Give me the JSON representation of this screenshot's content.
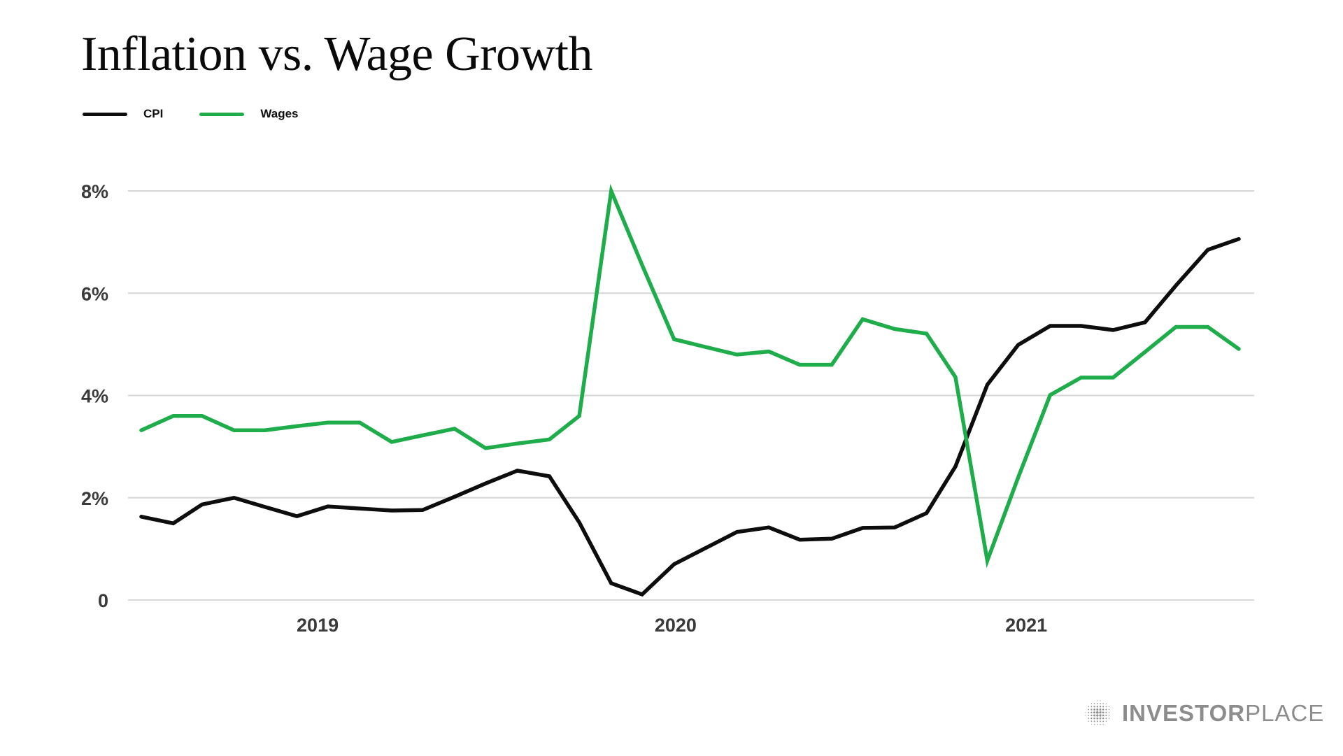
{
  "chart_data": {
    "type": "line",
    "title": "Inflation vs. Wage Growth",
    "xlabel": "",
    "ylabel": "",
    "x": [
      "2019-01",
      "2019-02",
      "2019-03",
      "2019-04",
      "2019-05",
      "2019-06",
      "2019-07",
      "2019-08",
      "2019-09",
      "2019-10",
      "2019-11",
      "2019-12",
      "2020-01",
      "2020-02",
      "2020-03",
      "2020-04",
      "2020-05",
      "2020-06",
      "2020-07",
      "2020-08",
      "2020-09",
      "2020-10",
      "2020-11",
      "2020-12",
      "2021-01",
      "2021-02",
      "2021-03",
      "2021-04",
      "2021-05",
      "2021-06",
      "2021-07",
      "2021-08",
      "2021-09",
      "2021-10",
      "2021-11",
      "2021-12"
    ],
    "series": [
      {
        "name": "CPI",
        "color": "#0d0d0d",
        "values": [
          1.63,
          1.5,
          1.87,
          2.0,
          1.82,
          1.64,
          1.83,
          1.79,
          1.75,
          1.76,
          2.02,
          2.28,
          2.53,
          2.42,
          1.52,
          0.33,
          0.11,
          0.7,
          1.01,
          1.33,
          1.42,
          1.18,
          1.2,
          1.41,
          1.42,
          1.7,
          2.61,
          4.21,
          4.99,
          5.36,
          5.36,
          5.28,
          5.43,
          6.15,
          6.85,
          7.06
        ]
      },
      {
        "name": "Wages",
        "color": "#1fad4b",
        "values": [
          3.32,
          3.6,
          3.6,
          3.32,
          3.32,
          3.4,
          3.47,
          3.47,
          3.09,
          3.22,
          3.35,
          2.97,
          3.06,
          3.14,
          3.6,
          8.0,
          6.55,
          5.1,
          4.95,
          4.8,
          4.86,
          4.6,
          4.6,
          5.49,
          5.3,
          5.21,
          4.36,
          0.77,
          2.4,
          4.01,
          4.35,
          4.35,
          4.85,
          5.34,
          5.34,
          4.91
        ]
      }
    ],
    "yticks": [
      0,
      2,
      4,
      6,
      8
    ],
    "ytick_labels": [
      "0",
      "2%",
      "4%",
      "6%",
      "8%"
    ],
    "xticks": [
      {
        "label": "2019",
        "at_index": 5.67
      },
      {
        "label": "2020",
        "at_index": 17.05
      },
      {
        "label": "2021",
        "at_index": 28.25
      }
    ],
    "ylim": [
      0,
      8
    ],
    "grid": true,
    "gridline_color": "#d6d6d6",
    "legend_position": "top-left"
  },
  "title": "Inflation vs. Wage Growth",
  "legend": [
    {
      "label": "CPI",
      "color": "#0d0d0d"
    },
    {
      "label": "Wages",
      "color": "#1fad4b"
    }
  ],
  "brand": {
    "bold": "INVESTOR",
    "light": "PLACE",
    "color": "#8c8c8c"
  }
}
